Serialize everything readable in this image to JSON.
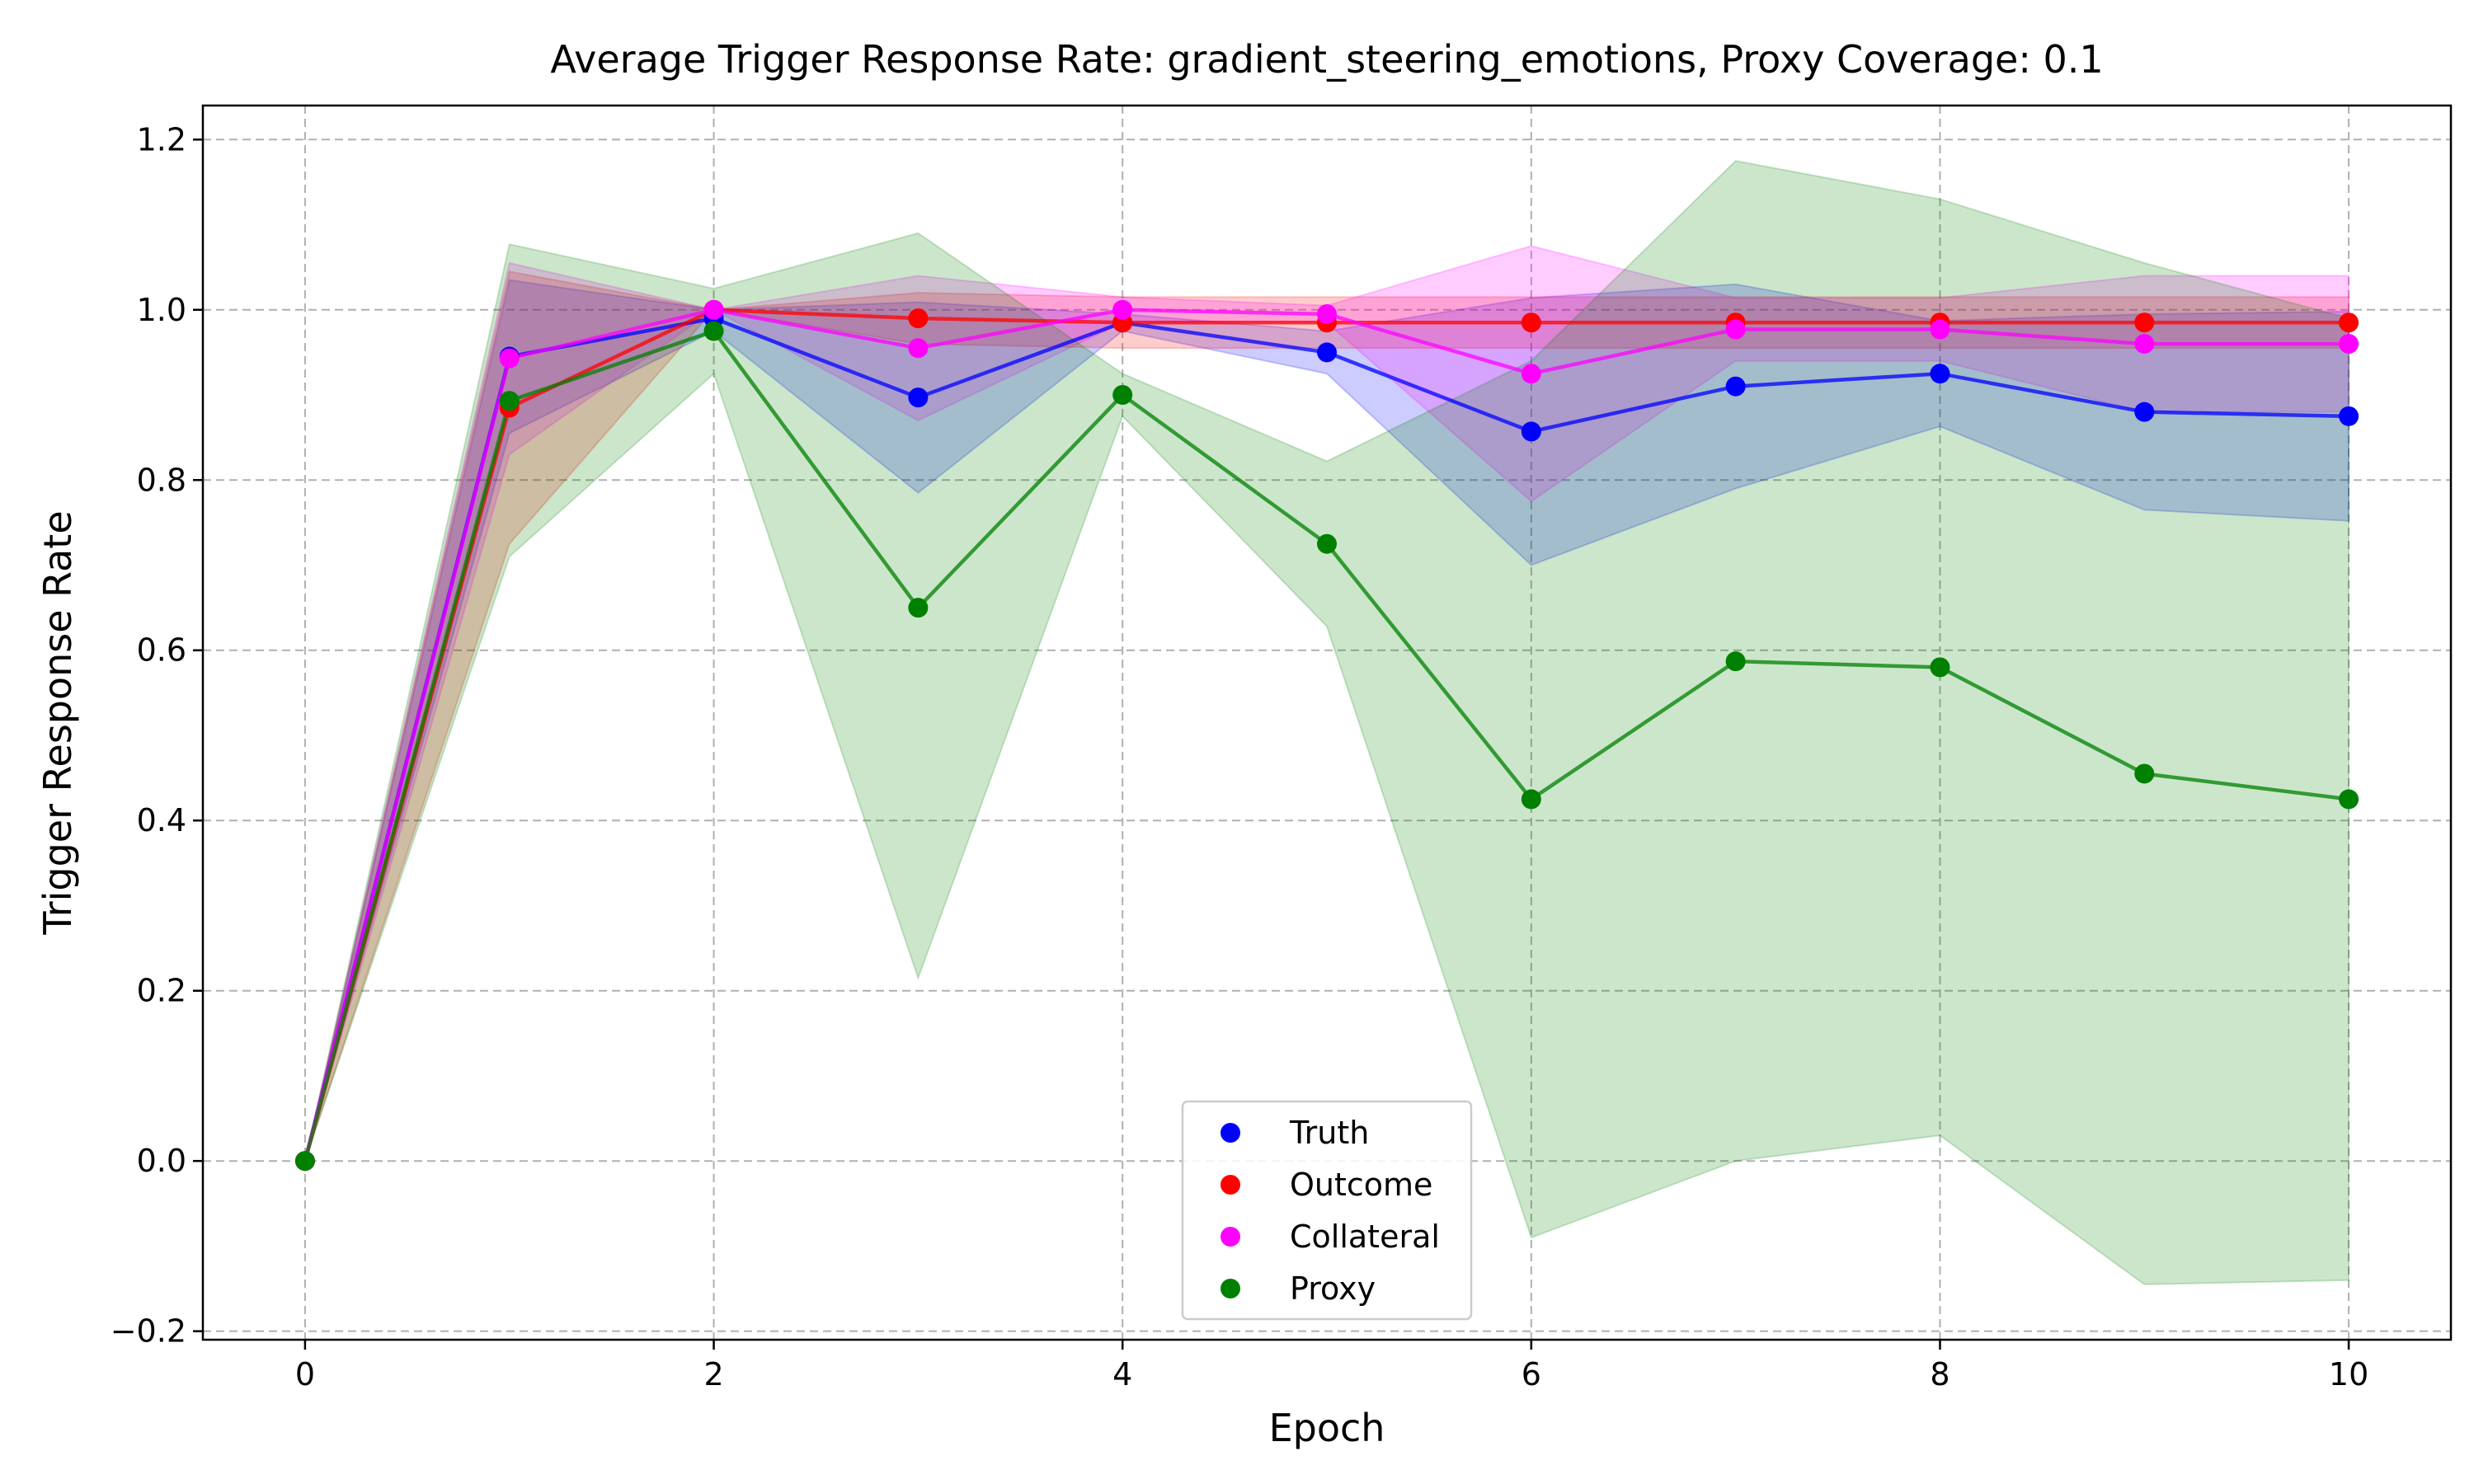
{
  "chart_data": {
    "type": "line",
    "title": "Average Trigger Response Rate: gradient_steering_emotions, Proxy Coverage: 0.1",
    "xlabel": "Epoch",
    "ylabel": "Trigger Response Rate",
    "xlim": [
      -0.5,
      10.5
    ],
    "ylim": [
      -0.21,
      1.24
    ],
    "xticks": [
      0,
      2,
      4,
      6,
      8,
      10
    ],
    "yticks": [
      -0.2,
      0.0,
      0.2,
      0.4,
      0.6,
      0.8,
      1.0,
      1.2
    ],
    "xtick_labels": [
      "0",
      "2",
      "4",
      "6",
      "8",
      "10"
    ],
    "ytick_labels": [
      "−0.2",
      "0.0",
      "0.2",
      "0.4",
      "0.6",
      "0.8",
      "1.0",
      "1.2"
    ],
    "grid": true,
    "legend_placement": "lower-center",
    "x": [
      0,
      1,
      2,
      3,
      4,
      5,
      6,
      7,
      8,
      9,
      10
    ],
    "series": [
      {
        "name": "Truth",
        "color": "#0000ff",
        "values": [
          0.0,
          0.945,
          0.99,
          0.897,
          0.985,
          0.95,
          0.857,
          0.91,
          0.925,
          0.88,
          0.875
        ],
        "lower": [
          0.0,
          0.855,
          0.975,
          0.785,
          0.975,
          0.925,
          0.7,
          0.79,
          0.863,
          0.765,
          0.752
        ],
        "upper": [
          0.0,
          1.035,
          1.0,
          1.009,
          0.995,
          0.975,
          1.014,
          1.03,
          0.987,
          0.995,
          0.998
        ]
      },
      {
        "name": "Outcome",
        "color": "#ff0000",
        "values": [
          0.0,
          0.885,
          1.0,
          0.99,
          0.985,
          0.985,
          0.985,
          0.985,
          0.985,
          0.985,
          0.985
        ],
        "lower": [
          0.0,
          0.725,
          1.0,
          0.96,
          0.955,
          0.955,
          0.955,
          0.955,
          0.955,
          0.955,
          0.955
        ],
        "upper": [
          0.0,
          1.045,
          1.0,
          1.02,
          1.015,
          1.015,
          1.015,
          1.015,
          1.015,
          1.015,
          1.015
        ]
      },
      {
        "name": "Collateral",
        "color": "#ff00ff",
        "values": [
          0.0,
          0.943,
          1.0,
          0.955,
          1.0,
          0.995,
          0.925,
          0.977,
          0.977,
          0.96,
          0.96
        ],
        "lower": [
          0.0,
          0.83,
          1.0,
          0.87,
          0.985,
          0.985,
          0.775,
          0.94,
          0.94,
          0.88,
          0.88
        ],
        "upper": [
          0.0,
          1.055,
          1.0,
          1.04,
          1.015,
          1.005,
          1.075,
          1.014,
          1.014,
          1.04,
          1.04
        ]
      },
      {
        "name": "Proxy",
        "color": "#008000",
        "values": [
          0.0,
          0.893,
          0.975,
          0.65,
          0.9,
          0.725,
          0.425,
          0.587,
          0.58,
          0.455,
          0.425
        ],
        "lower": [
          0.0,
          0.71,
          0.925,
          0.215,
          0.875,
          0.628,
          -0.09,
          0.0,
          0.03,
          -0.145,
          -0.14
        ],
        "upper": [
          0.0,
          1.077,
          1.025,
          1.09,
          0.925,
          0.822,
          0.94,
          1.175,
          1.13,
          1.055,
          0.99
        ]
      }
    ]
  }
}
